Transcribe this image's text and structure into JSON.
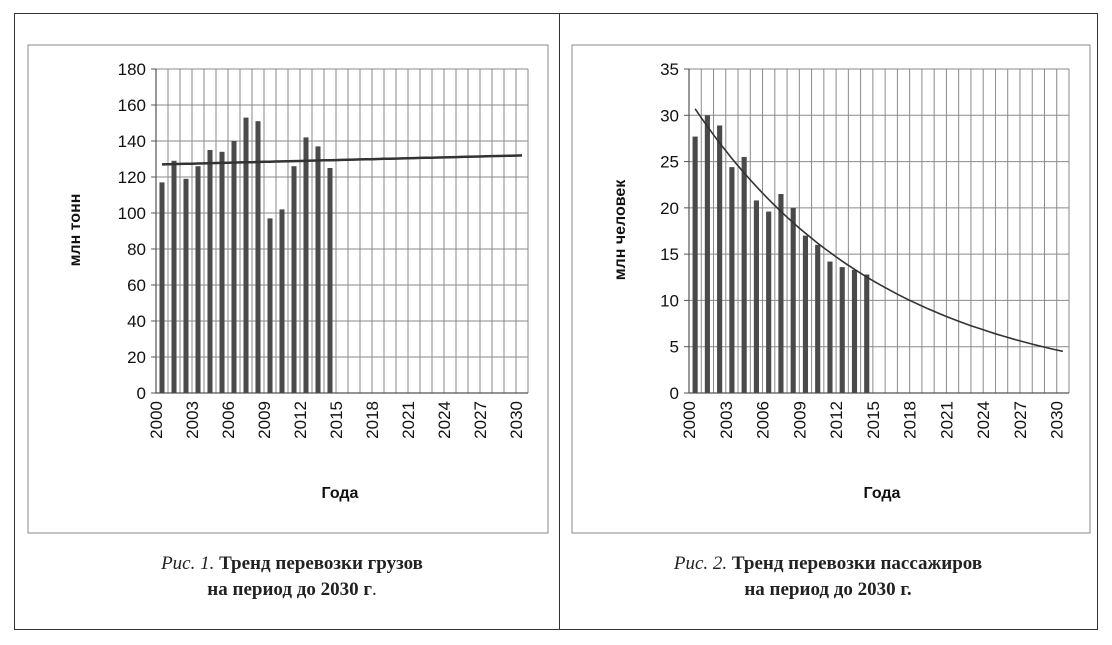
{
  "chart_data": [
    {
      "type": "bar",
      "xlabel": "Года",
      "ylabel": "млн тонн",
      "ylim": [
        0,
        180
      ],
      "yticks": [
        "0",
        "20",
        "40",
        "60",
        "80",
        "100",
        "120",
        "140",
        "160",
        "180"
      ],
      "xticks": [
        "2000",
        "2003",
        "2006",
        "2009",
        "2012",
        "2015",
        "2018",
        "2021",
        "2024",
        "2027",
        "2030"
      ],
      "x": [
        2000,
        2001,
        2002,
        2003,
        2004,
        2005,
        2006,
        2007,
        2008,
        2009,
        2010,
        2011,
        2012,
        2013,
        2014
      ],
      "values": [
        117,
        129,
        119,
        126,
        135,
        134,
        140,
        153,
        151,
        97,
        102,
        126,
        142,
        137,
        125
      ],
      "trend": {
        "type": "linear",
        "x_range": [
          2000,
          2030
        ],
        "y_start": 127,
        "y_end": 132
      },
      "grid": "vertical and horizontal",
      "bar_color": "#4a4a4a"
    },
    {
      "type": "bar",
      "xlabel": "Года",
      "ylabel": "млн человек",
      "ylim": [
        0,
        35
      ],
      "yticks": [
        "0",
        "5",
        "10",
        "15",
        "20",
        "25",
        "30",
        "35"
      ],
      "xticks": [
        "2000",
        "2003",
        "2006",
        "2009",
        "2012",
        "2015",
        "2018",
        "2021",
        "2024",
        "2027",
        "2030"
      ],
      "x": [
        2000,
        2001,
        2002,
        2003,
        2004,
        2005,
        2006,
        2007,
        2008,
        2009,
        2010,
        2011,
        2012,
        2013,
        2014
      ],
      "values": [
        27.7,
        30.0,
        28.9,
        24.4,
        25.5,
        20.8,
        19.6,
        21.5,
        20.0,
        17.0,
        16.0,
        14.2,
        13.6,
        13.3,
        12.8
      ],
      "trend": {
        "type": "exponential",
        "x_range": [
          2000,
          2030
        ],
        "y_start": 30.7,
        "y_end": 4.5
      },
      "grid": "vertical and horizontal",
      "bar_color": "#4a4a4a"
    }
  ],
  "captions": [
    {
      "prefix": "Рис. 1.",
      "title": "Тренд перевозки грузов",
      "line2": "на период до 2030 г",
      "suffix": "."
    },
    {
      "prefix": "Рис. 2.",
      "title": "Тренд перевозки пассажиров",
      "line2": "на период до 2030 г."
    }
  ]
}
